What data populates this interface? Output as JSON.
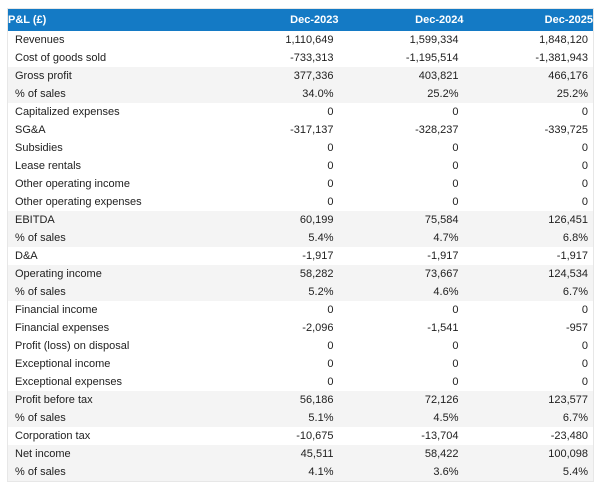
{
  "colors": {
    "header_bg": "#147ac5",
    "header_text": "#ffffff",
    "highlight_bg": "#f4f4f4",
    "text": "#212121",
    "table_border": "#e7e7e7"
  },
  "chart_data": {
    "type": "table",
    "title": "P&L (£)",
    "header": [
      "P&L (£)",
      "Dec-2023",
      "Dec-2024",
      "Dec-2025"
    ],
    "rows": [
      {
        "label": "Revenues",
        "values": [
          "1,110,649",
          "1,599,334",
          "1,848,120"
        ],
        "emphasis": false
      },
      {
        "label": "Cost of goods sold",
        "values": [
          "-733,313",
          "-1,195,514",
          "-1,381,943"
        ],
        "emphasis": false
      },
      {
        "label": "Gross profit",
        "values": [
          "377,336",
          "403,821",
          "466,176"
        ],
        "emphasis": true
      },
      {
        "label": "% of sales",
        "values": [
          "34.0%",
          "25.2%",
          "25.2%"
        ],
        "emphasis": true
      },
      {
        "label": "Capitalized expenses",
        "values": [
          "0",
          "0",
          "0"
        ],
        "emphasis": false
      },
      {
        "label": "SG&A",
        "values": [
          "-317,137",
          "-328,237",
          "-339,725"
        ],
        "emphasis": false
      },
      {
        "label": "Subsidies",
        "values": [
          "0",
          "0",
          "0"
        ],
        "emphasis": false
      },
      {
        "label": "Lease rentals",
        "values": [
          "0",
          "0",
          "0"
        ],
        "emphasis": false
      },
      {
        "label": "Other operating income",
        "values": [
          "0",
          "0",
          "0"
        ],
        "emphasis": false
      },
      {
        "label": "Other operating expenses",
        "values": [
          "0",
          "0",
          "0"
        ],
        "emphasis": false
      },
      {
        "label": "EBITDA",
        "values": [
          "60,199",
          "75,584",
          "126,451"
        ],
        "emphasis": true
      },
      {
        "label": "% of sales",
        "values": [
          "5.4%",
          "4.7%",
          "6.8%"
        ],
        "emphasis": true
      },
      {
        "label": "D&A",
        "values": [
          "-1,917",
          "-1,917",
          "-1,917"
        ],
        "emphasis": false
      },
      {
        "label": "Operating income",
        "values": [
          "58,282",
          "73,667",
          "124,534"
        ],
        "emphasis": true
      },
      {
        "label": "% of sales",
        "values": [
          "5.2%",
          "4.6%",
          "6.7%"
        ],
        "emphasis": true
      },
      {
        "label": "Financial income",
        "values": [
          "0",
          "0",
          "0"
        ],
        "emphasis": false
      },
      {
        "label": "Financial expenses",
        "values": [
          "-2,096",
          "-1,541",
          "-957"
        ],
        "emphasis": false
      },
      {
        "label": "Profit (loss) on disposal",
        "values": [
          "0",
          "0",
          "0"
        ],
        "emphasis": false
      },
      {
        "label": "Exceptional income",
        "values": [
          "0",
          "0",
          "0"
        ],
        "emphasis": false
      },
      {
        "label": "Exceptional expenses",
        "values": [
          "0",
          "0",
          "0"
        ],
        "emphasis": false
      },
      {
        "label": "Profit before tax",
        "values": [
          "56,186",
          "72,126",
          "123,577"
        ],
        "emphasis": true
      },
      {
        "label": "% of sales",
        "values": [
          "5.1%",
          "4.5%",
          "6.7%"
        ],
        "emphasis": true
      },
      {
        "label": "Corporation tax",
        "values": [
          "-10,675",
          "-13,704",
          "-23,480"
        ],
        "emphasis": false
      },
      {
        "label": "Net income",
        "values": [
          "45,511",
          "58,422",
          "100,098"
        ],
        "emphasis": true
      },
      {
        "label": "% of sales",
        "values": [
          "4.1%",
          "3.6%",
          "5.4%"
        ],
        "emphasis": true
      }
    ]
  }
}
